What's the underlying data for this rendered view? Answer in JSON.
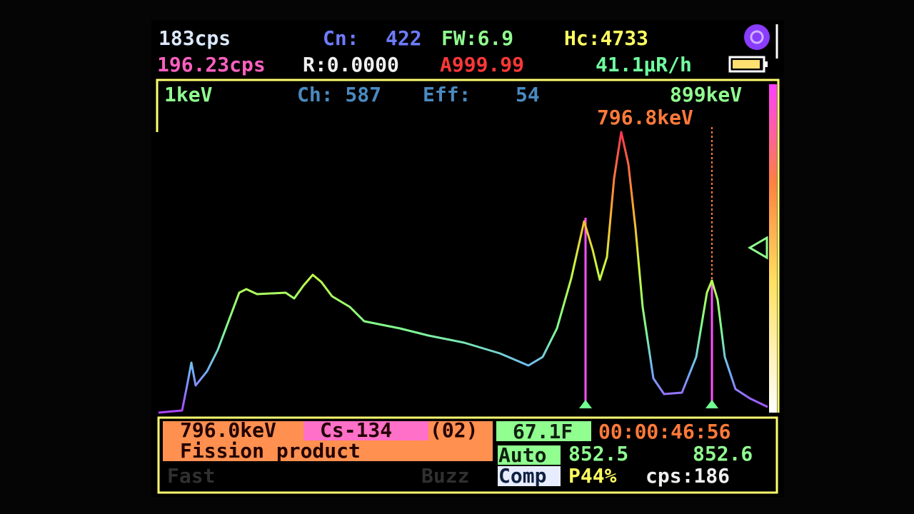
{
  "header": {
    "count_rate": "183cps",
    "cn_label": "Cn:",
    "cn_value": "422",
    "fwhm": "FW:6.9",
    "hc": "Hc:4733",
    "avg_rate": "196.23cps",
    "r_value": "R:0.0000",
    "a_value": "A999.99",
    "dose_rate": "41.1μR/h"
  },
  "spectrum": {
    "left_energy": "1keV",
    "channel": "Ch: 587",
    "eff_label": "Eff:",
    "eff_value": "54",
    "right_energy": "899keV",
    "cursor_energy": "796.8keV"
  },
  "panel": {
    "peak_energy": "796.0keV",
    "isotope": "Cs-134",
    "code": "(02)",
    "description": "Fission product",
    "fast": "Fast",
    "buzz": "Buzz",
    "temperature": "67.1F",
    "timer": "00:00:46:56",
    "auto": "Auto",
    "value_left": "852.5",
    "value_right": "852.6",
    "comp": "Comp",
    "percent": "P44%",
    "cps": "cps:186"
  }
}
